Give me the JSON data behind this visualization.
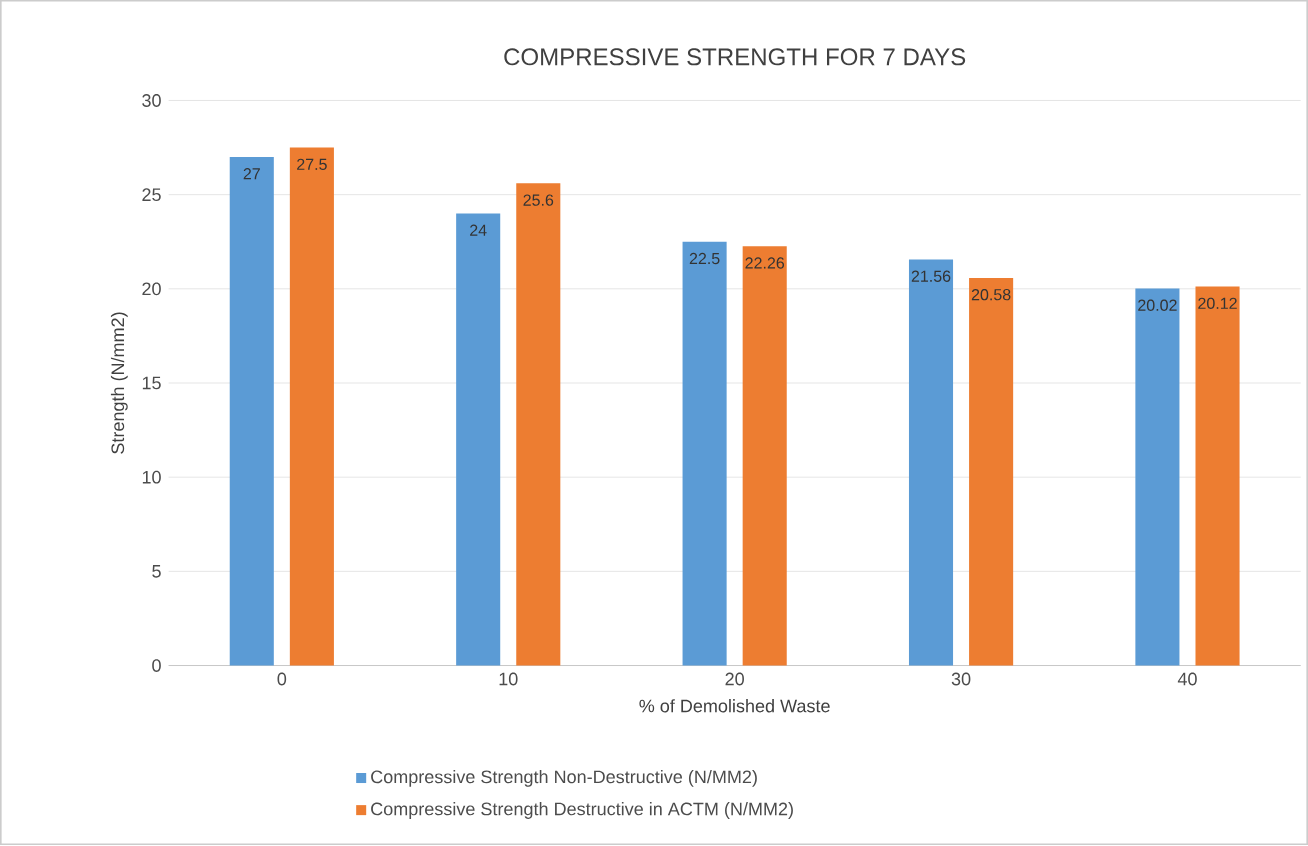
{
  "chart_data": {
    "type": "bar",
    "title": "COMPRESSIVE STRENGTH FOR 7 DAYS",
    "xlabel": "% of Demolished Waste",
    "ylabel": "Strength (N/mm2)",
    "categories": [
      "0",
      "10",
      "20",
      "30",
      "40"
    ],
    "series": [
      {
        "name": "Compressive Strength Non-Destructive (N/MM2)",
        "color": "#5b9bd5",
        "values": [
          27,
          24,
          22.5,
          21.56,
          20.02
        ],
        "value_labels": [
          "27",
          "24",
          "22.5",
          "21.56",
          "20.02"
        ]
      },
      {
        "name": "Compressive Strength Destructive in ACTM (N/MM2)",
        "color": "#ed7d31",
        "values": [
          27.5,
          25.6,
          22.26,
          20.58,
          20.12
        ],
        "value_labels": [
          "27.5",
          "25.6",
          "22.26",
          "20.58",
          "20.12"
        ]
      }
    ],
    "ylim": [
      0,
      30
    ],
    "yticks": [
      0,
      5,
      10,
      15,
      20,
      25,
      30
    ],
    "grid": "y",
    "legend": "bottom"
  }
}
